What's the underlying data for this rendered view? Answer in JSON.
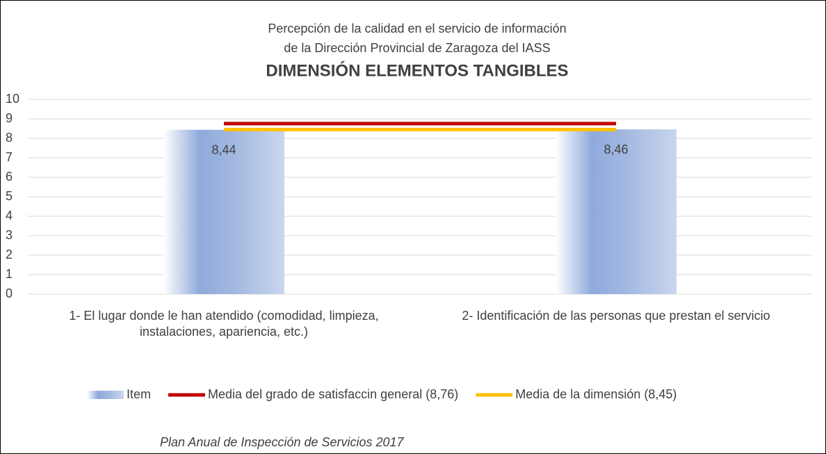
{
  "chart_data": {
    "type": "bar",
    "title_lines": [
      "Percepción de la calidad en el servicio de información",
      "de la Dirección Provincial de Zaragoza del IASS"
    ],
    "title": "DIMENSIÓN ELEMENTOS TANGIBLES",
    "categories": [
      "1- El lugar donde le han atendido (comodidad, limpieza, instalaciones, apariencia, etc.)",
      "2- Identificación de las personas que prestan el servicio"
    ],
    "series": [
      {
        "name": "Item",
        "type": "bar",
        "color": "#8faadc",
        "values": [
          8.44,
          8.46
        ],
        "value_labels": [
          "8,44",
          "8,46"
        ]
      },
      {
        "name": "Media del grado de satisfaccin general (8,76)",
        "type": "line",
        "color": "#c00000",
        "values": [
          8.76,
          8.76
        ]
      },
      {
        "name": "Media de la dimensión (8,45)",
        "type": "line",
        "color": "#ffc000",
        "values": [
          8.45,
          8.45
        ]
      }
    ],
    "ylim": [
      0,
      10
    ],
    "yticks": [
      0,
      1,
      2,
      3,
      4,
      5,
      6,
      7,
      8,
      9,
      10
    ],
    "grid": true,
    "legend": "bottom",
    "footer": "Plan Anual de Inspección de Servicios 2017"
  }
}
